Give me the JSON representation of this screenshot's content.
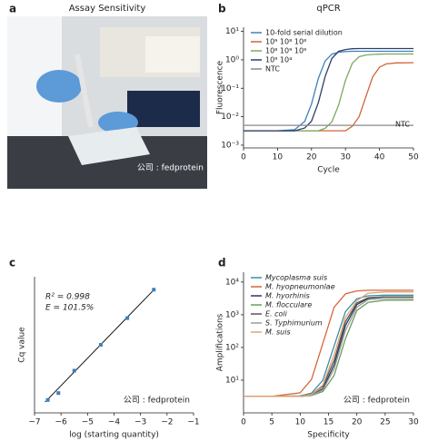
{
  "photo": {
    "panel_label": "a",
    "title": "Assay Sensitivity",
    "watermark": "公司 : fedprotein"
  },
  "chart_data": [
    {
      "type": "line",
      "panel_label": "b",
      "title": "qPCR",
      "x_label": "Cycle",
      "y_label": "Fluorescence",
      "log_y": true,
      "x": [
        0,
        5,
        10,
        15,
        18,
        20,
        22,
        24,
        26,
        28,
        30,
        32,
        34,
        36,
        38,
        40,
        42,
        45,
        50
      ],
      "xlim": [
        0,
        50
      ],
      "xticks": [
        0,
        10,
        20,
        30,
        40,
        50
      ],
      "ylim": [
        0.0008,
        14
      ],
      "yticks": [
        {
          "value": 10,
          "label": "10¹"
        },
        {
          "value": 1,
          "label": "10⁰"
        },
        {
          "value": 0.1,
          "label": "10⁻¹"
        },
        {
          "value": 0.01,
          "label": "10⁻²"
        },
        {
          "value": 0.001,
          "label": "10⁻³"
        }
      ],
      "annotation": "NTC",
      "series": [
        {
          "name": "10-fold serial dilution",
          "color": "#3d7fbf",
          "values": [
            0.0032,
            0.0032,
            0.0032,
            0.0035,
            0.0068,
            0.028,
            0.22,
            0.91,
            1.58,
            1.86,
            1.95,
            2,
            2,
            2,
            2,
            2,
            2,
            2,
            2
          ]
        },
        {
          "name": "10⁹ 10⁸ 10⁸",
          "color": "#d2643c",
          "values": [
            0.0032,
            0.0032,
            0.0032,
            0.0032,
            0.0032,
            0.0032,
            0.0032,
            0.0032,
            0.0032,
            0.0032,
            0.0032,
            0.0046,
            0.01,
            0.05,
            0.25,
            0.55,
            0.72,
            0.78,
            0.79
          ]
        },
        {
          "name": "10⁸ 10⁹ 10⁹",
          "color": "#7aaa5e",
          "values": [
            0.0032,
            0.0032,
            0.0032,
            0.0032,
            0.0032,
            0.0032,
            0.0032,
            0.0039,
            0.0066,
            0.026,
            0.19,
            0.76,
            1.29,
            1.48,
            1.55,
            1.58,
            1.6,
            1.6,
            1.6
          ]
        },
        {
          "name": "10⁹ 10⁴",
          "color": "#2e4068",
          "values": [
            0.0032,
            0.0032,
            0.0032,
            0.0032,
            0.004,
            0.007,
            0.031,
            0.26,
            1.12,
            2.0,
            2.3,
            2.45,
            2.5,
            2.5,
            2.5,
            2.5,
            2.5,
            2.5,
            2.5
          ]
        },
        {
          "name": "NTC",
          "color": "#8a8a8a",
          "values": [
            0.005,
            0.005,
            0.005,
            0.005,
            0.005,
            0.005,
            0.005,
            0.005,
            0.005,
            0.005,
            0.005,
            0.005,
            0.005,
            0.005,
            0.005,
            0.005,
            0.005,
            0.005,
            0.005
          ]
        }
      ]
    },
    {
      "type": "scatter",
      "panel_label": "c",
      "x_label": "log (starting quantity)",
      "y_label": "Cq value",
      "annotations": [
        "R² = 0.998",
        "E = 101.5%"
      ],
      "watermark": "公司 : fedprotein",
      "xlim": [
        -7,
        -1
      ],
      "xticks": [
        {
          "value": -7,
          "label": "−7"
        },
        {
          "value": -6,
          "label": "−6"
        },
        {
          "value": -5,
          "label": "−5"
        },
        {
          "value": -4,
          "label": "−4"
        },
        {
          "value": -3,
          "label": "−3"
        },
        {
          "value": -2,
          "label": "−2"
        },
        {
          "value": -1,
          "label": "−1"
        }
      ],
      "ylim": [
        3,
        82
      ],
      "color": "#3d7fbf",
      "x": [
        -6.5,
        -6.1,
        -5.5,
        -4.5,
        -3.5,
        -2.5
      ],
      "values": [
        10.5,
        14.5,
        27.5,
        42.5,
        58,
        74.5
      ],
      "fit": {
        "x": [
          -6.6,
          -2.45
        ],
        "y": [
          9.3,
          75.2
        ]
      }
    },
    {
      "type": "line",
      "panel_label": "d",
      "x_label": "Specificity",
      "y_label": "Amplifications",
      "log_y": true,
      "watermark": "公司 : fedprotein",
      "x": [
        0,
        5,
        10,
        12,
        14,
        16,
        18,
        20,
        22,
        25,
        30
      ],
      "xlim": [
        0,
        30
      ],
      "xticks": [
        0,
        5,
        10,
        15,
        20,
        25,
        30
      ],
      "ylim": [
        1,
        20000
      ],
      "yticks": [
        {
          "value": 10,
          "label": "10¹"
        },
        {
          "value": 100,
          "label": "10²"
        },
        {
          "value": 1000,
          "label": "10³"
        },
        {
          "value": 10000,
          "label": "10⁴"
        }
      ],
      "series": [
        {
          "name": "Mycoplasma suis",
          "color": "#3a90a2",
          "values": [
            3.2,
            3.2,
            3.3,
            4.0,
            10,
            112,
            1260,
            3090,
            3800,
            3980,
            3980
          ]
        },
        {
          "name": "M. hyopneumonlae",
          "color": "#d6663c",
          "values": [
            3.2,
            3.2,
            4.1,
            10.5,
            134,
            1700,
            4370,
            5370,
            5600,
            5600,
            5620
          ]
        },
        {
          "name": "M. hyorhinis",
          "color": "#2a3a5c",
          "values": [
            3.2,
            3.2,
            3.2,
            3.5,
            5.5,
            29,
            470,
            2040,
            3160,
            3550,
            3550
          ]
        },
        {
          "name": "M. flocculare",
          "color": "#6c9c5c",
          "values": [
            3.2,
            3.2,
            3.2,
            3.4,
            4.5,
            14,
            186,
            1350,
            2400,
            2800,
            2820
          ]
        },
        {
          "name": "E. coli",
          "color": "#555555",
          "values": [
            3.2,
            3.2,
            3.2,
            3.8,
            6.5,
            40,
            620,
            2300,
            3300,
            3550,
            3550
          ]
        },
        {
          "name": "S. Typhimurium",
          "color": "#9a9a9a",
          "values": [
            3.2,
            3.2,
            3.2,
            3.5,
            5.0,
            22,
            330,
            1700,
            2900,
            3150,
            3160
          ]
        },
        {
          "name": "M. suis",
          "color": "#e3a272",
          "values": [
            3.2,
            3.2,
            3.2,
            3.7,
            7.1,
            60,
            830,
            2700,
            4570,
            5000,
            5010
          ]
        }
      ]
    }
  ]
}
